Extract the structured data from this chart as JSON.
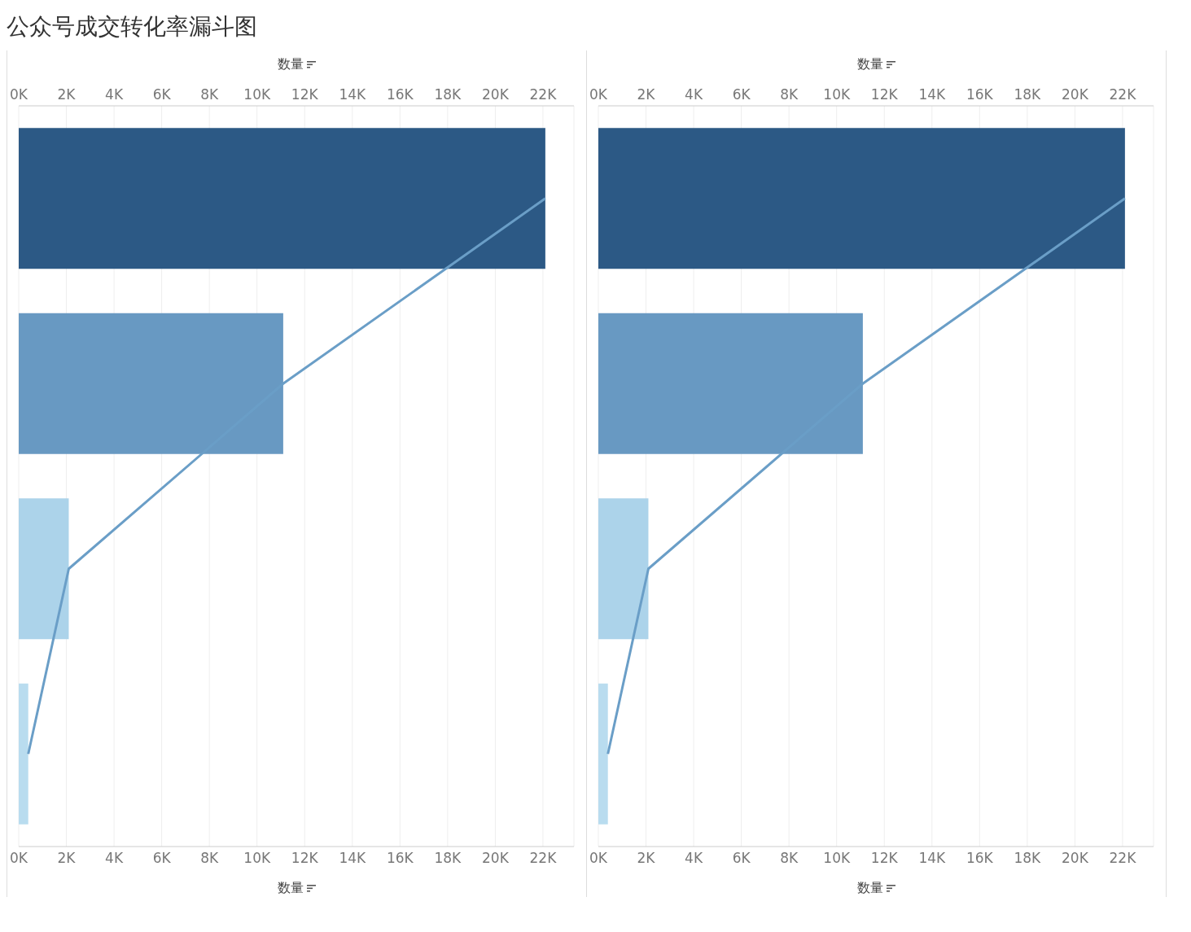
{
  "chart_data": [
    {
      "type": "bar",
      "title": "公众号成交转化率漏斗图",
      "orientation": "horizontal",
      "categories": [
        null,
        null,
        null,
        null
      ],
      "xlabel": "数量",
      "x2label": "数量",
      "xlim": [
        0,
        23300
      ],
      "x2lim": [
        0,
        23300
      ],
      "xticks": [
        {
          "value": 0,
          "label": "0K"
        },
        {
          "value": 2000,
          "label": "2K"
        },
        {
          "value": 4000,
          "label": "4K"
        },
        {
          "value": 6000,
          "label": "6K"
        },
        {
          "value": 8000,
          "label": "8K"
        },
        {
          "value": 10000,
          "label": "10K"
        },
        {
          "value": 12000,
          "label": "12K"
        },
        {
          "value": 14000,
          "label": "14K"
        },
        {
          "value": 16000,
          "label": "16K"
        },
        {
          "value": 18000,
          "label": "18K"
        },
        {
          "value": 20000,
          "label": "20K"
        },
        {
          "value": 22000,
          "label": "22K"
        }
      ],
      "x2ticks": [
        {
          "value": 0,
          "label": "0K"
        },
        {
          "value": 2000,
          "label": "2K"
        },
        {
          "value": 4000,
          "label": "4K"
        },
        {
          "value": 6000,
          "label": "6K"
        },
        {
          "value": 8000,
          "label": "8K"
        },
        {
          "value": 10000,
          "label": "10K"
        },
        {
          "value": 12000,
          "label": "12K"
        },
        {
          "value": 14000,
          "label": "14K"
        },
        {
          "value": 16000,
          "label": "16K"
        },
        {
          "value": 18000,
          "label": "18K"
        },
        {
          "value": 20000,
          "label": "20K"
        },
        {
          "value": 22000,
          "label": "22K"
        }
      ],
      "grid": "x",
      "tick_labels": "x",
      "series": [
        {
          "type": "bar",
          "values": [
            22100,
            11100,
            2100,
            400
          ],
          "colors": [
            "#2c5985",
            "#6899c2",
            "#acd3ea",
            "#b9dcef"
          ]
        },
        {
          "type": "line",
          "values": [
            22100,
            11100,
            2100,
            400
          ],
          "color": "#6a9ec7"
        }
      ]
    },
    {
      "type": "bar",
      "orientation": "horizontal",
      "categories": [
        null,
        null,
        null,
        null
      ],
      "xlabel": "数量",
      "x2label": "数量",
      "xlim": [
        0,
        23300
      ],
      "x2lim": [
        0,
        23300
      ],
      "xticks": [
        {
          "value": 0,
          "label": "0K"
        },
        {
          "value": 2000,
          "label": "2K"
        },
        {
          "value": 4000,
          "label": "4K"
        },
        {
          "value": 6000,
          "label": "6K"
        },
        {
          "value": 8000,
          "label": "8K"
        },
        {
          "value": 10000,
          "label": "10K"
        },
        {
          "value": 12000,
          "label": "12K"
        },
        {
          "value": 14000,
          "label": "14K"
        },
        {
          "value": 16000,
          "label": "16K"
        },
        {
          "value": 18000,
          "label": "18K"
        },
        {
          "value": 20000,
          "label": "20K"
        },
        {
          "value": 22000,
          "label": "22K"
        }
      ],
      "x2ticks": [
        {
          "value": 0,
          "label": "0K"
        },
        {
          "value": 2000,
          "label": "2K"
        },
        {
          "value": 4000,
          "label": "4K"
        },
        {
          "value": 6000,
          "label": "6K"
        },
        {
          "value": 8000,
          "label": "8K"
        },
        {
          "value": 10000,
          "label": "10K"
        },
        {
          "value": 12000,
          "label": "12K"
        },
        {
          "value": 14000,
          "label": "14K"
        },
        {
          "value": 16000,
          "label": "16K"
        },
        {
          "value": 18000,
          "label": "18K"
        },
        {
          "value": 20000,
          "label": "20K"
        },
        {
          "value": 22000,
          "label": "22K"
        }
      ],
      "grid": "x",
      "tick_labels": "x",
      "series": [
        {
          "type": "bar",
          "values": [
            22100,
            11100,
            2100,
            400
          ],
          "colors": [
            "#2c5985",
            "#6899c2",
            "#acd3ea",
            "#b9dcef"
          ]
        },
        {
          "type": "line",
          "values": [
            22100,
            11100,
            2100,
            400
          ],
          "color": "#6a9ec7"
        }
      ]
    }
  ]
}
